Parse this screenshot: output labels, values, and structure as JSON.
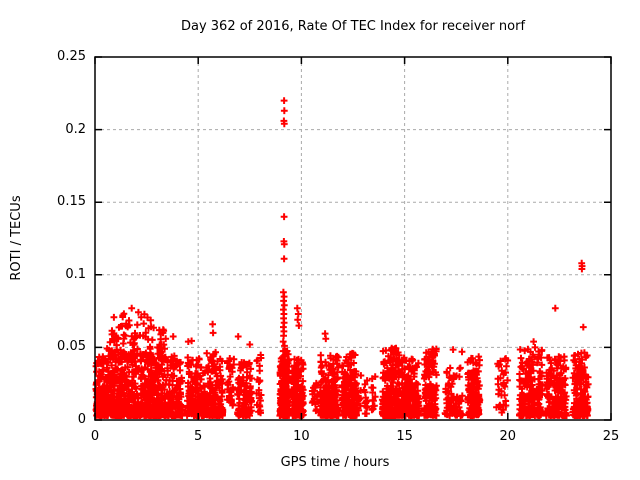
{
  "chart_data": {
    "type": "scatter",
    "title": "Day 362 of 2016, Rate Of TEC Index for receiver norf",
    "xlabel": "GPS time / hours",
    "ylabel": "ROTI / TECUs",
    "xlim": [
      0,
      25
    ],
    "ylim": [
      0,
      0.25
    ],
    "xticks": [
      {
        "v": 0,
        "label": "0"
      },
      {
        "v": 5,
        "label": "5"
      },
      {
        "v": 10,
        "label": "10"
      },
      {
        "v": 15,
        "label": "15"
      },
      {
        "v": 20,
        "label": "20"
      },
      {
        "v": 25,
        "label": "25"
      }
    ],
    "yticks": [
      {
        "v": 0,
        "label": "0"
      },
      {
        "v": 0.05,
        "label": "0.05"
      },
      {
        "v": 0.1,
        "label": "0.1"
      },
      {
        "v": 0.15,
        "label": "0.15"
      },
      {
        "v": 0.2,
        "label": "0.2"
      },
      {
        "v": 0.25,
        "label": "0.25"
      }
    ],
    "grid": true,
    "legend": "none",
    "marker": "plus",
    "marker_color": "#ff0000",
    "grid_color": "#aaaaaa",
    "axis_color": "#000000",
    "background_color": "#ffffff",
    "clusters": [
      {
        "x0": 0.02,
        "x1": 0.5,
        "n": 120,
        "y0": 0.003,
        "y1": 0.044,
        "pow": 2.0
      },
      {
        "x0": 0.55,
        "x1": 3.3,
        "n": 700,
        "y0": 0.003,
        "y1": 0.05,
        "pow": 2.1
      },
      {
        "x0": 0.7,
        "x1": 2.85,
        "n": 70,
        "y0": 0.044,
        "y1": 0.075,
        "pow": 1.5
      },
      {
        "x0": 3.1,
        "x1": 3.45,
        "n": 22,
        "y0": 0.04,
        "y1": 0.066,
        "pow": 1.3
      },
      {
        "x0": 3.35,
        "x1": 4.25,
        "n": 150,
        "y0": 0.003,
        "y1": 0.046,
        "pow": 2.0
      },
      {
        "x0": 4.45,
        "x1": 5.35,
        "n": 160,
        "y0": 0.003,
        "y1": 0.044,
        "pow": 2.0
      },
      {
        "x0": 5.4,
        "x1": 6.2,
        "n": 150,
        "y0": 0.003,
        "y1": 0.047,
        "pow": 2.0
      },
      {
        "x0": 6.4,
        "x1": 6.75,
        "n": 35,
        "y0": 0.01,
        "y1": 0.046,
        "pow": 1.5
      },
      {
        "x0": 6.9,
        "x1": 7.6,
        "n": 120,
        "y0": 0.003,
        "y1": 0.04,
        "pow": 2.0
      },
      {
        "x0": 7.8,
        "x1": 8.05,
        "n": 22,
        "y0": 0.004,
        "y1": 0.045,
        "pow": 1.7
      },
      {
        "x0": 8.95,
        "x1": 9.4,
        "n": 210,
        "y0": 0.003,
        "y1": 0.048,
        "pow": 2.0
      },
      {
        "x0": 9.55,
        "x1": 10.1,
        "n": 170,
        "y0": 0.003,
        "y1": 0.042,
        "pow": 2.0
      },
      {
        "x0": 10.5,
        "x1": 10.8,
        "n": 18,
        "y0": 0.006,
        "y1": 0.027,
        "pow": 1.3
      },
      {
        "x0": 10.9,
        "x1": 11.8,
        "n": 210,
        "y0": 0.003,
        "y1": 0.045,
        "pow": 2.0
      },
      {
        "x0": 11.95,
        "x1": 12.7,
        "n": 180,
        "y0": 0.003,
        "y1": 0.046,
        "pow": 2.0
      },
      {
        "x0": 12.75,
        "x1": 13.2,
        "n": 25,
        "y0": 0.004,
        "y1": 0.031,
        "pow": 1.5
      },
      {
        "x0": 13.4,
        "x1": 13.6,
        "n": 12,
        "y0": 0.005,
        "y1": 0.035,
        "pow": 1.4
      },
      {
        "x0": 13.9,
        "x1": 14.8,
        "n": 230,
        "y0": 0.003,
        "y1": 0.05,
        "pow": 2.0
      },
      {
        "x0": 14.85,
        "x1": 15.7,
        "n": 200,
        "y0": 0.003,
        "y1": 0.043,
        "pow": 2.0
      },
      {
        "x0": 15.95,
        "x1": 16.55,
        "n": 160,
        "y0": 0.003,
        "y1": 0.049,
        "pow": 1.9
      },
      {
        "x0": 16.95,
        "x1": 17.8,
        "n": 80,
        "y0": 0.003,
        "y1": 0.036,
        "pow": 1.8
      },
      {
        "x0": 18.05,
        "x1": 18.65,
        "n": 140,
        "y0": 0.003,
        "y1": 0.044,
        "pow": 2.0
      },
      {
        "x0": 19.45,
        "x1": 20.0,
        "n": 35,
        "y0": 0.005,
        "y1": 0.045,
        "pow": 1.5
      },
      {
        "x0": 20.55,
        "x1": 21.7,
        "n": 210,
        "y0": 0.003,
        "y1": 0.05,
        "pow": 2.0
      },
      {
        "x0": 21.85,
        "x1": 22.85,
        "n": 180,
        "y0": 0.003,
        "y1": 0.044,
        "pow": 2.0
      },
      {
        "x0": 23.15,
        "x1": 23.9,
        "n": 170,
        "y0": 0.003,
        "y1": 0.047,
        "pow": 2.0
      }
    ],
    "outliers": [
      [
        9.16,
        0.22
      ],
      [
        9.17,
        0.213
      ],
      [
        9.15,
        0.206
      ],
      [
        9.17,
        0.204
      ],
      [
        9.16,
        0.14
      ],
      [
        9.15,
        0.123
      ],
      [
        9.17,
        0.121
      ],
      [
        9.16,
        0.111
      ],
      [
        9.13,
        0.088
      ],
      [
        9.16,
        0.085
      ],
      [
        9.14,
        0.082
      ],
      [
        9.17,
        0.079
      ],
      [
        9.13,
        0.076
      ],
      [
        9.15,
        0.073
      ],
      [
        9.14,
        0.07
      ],
      [
        9.16,
        0.067
      ],
      [
        9.13,
        0.064
      ],
      [
        9.15,
        0.061
      ],
      [
        9.14,
        0.058
      ],
      [
        9.12,
        0.054
      ],
      [
        9.18,
        0.051
      ],
      [
        1.78,
        0.077
      ],
      [
        1.34,
        0.072
      ],
      [
        3.79,
        0.0575
      ],
      [
        4.52,
        0.054
      ],
      [
        4.68,
        0.0545
      ],
      [
        5.7,
        0.066
      ],
      [
        5.72,
        0.06
      ],
      [
        6.94,
        0.0575
      ],
      [
        7.5,
        0.052
      ],
      [
        9.8,
        0.077
      ],
      [
        9.85,
        0.073
      ],
      [
        9.82,
        0.069
      ],
      [
        9.88,
        0.065
      ],
      [
        11.15,
        0.0595
      ],
      [
        11.18,
        0.056
      ],
      [
        17.35,
        0.0485
      ],
      [
        17.78,
        0.047
      ],
      [
        21.25,
        0.054
      ],
      [
        21.32,
        0.05
      ],
      [
        22.3,
        0.077
      ],
      [
        23.58,
        0.108
      ],
      [
        23.6,
        0.106
      ],
      [
        23.59,
        0.104
      ],
      [
        23.66,
        0.064
      ]
    ]
  }
}
